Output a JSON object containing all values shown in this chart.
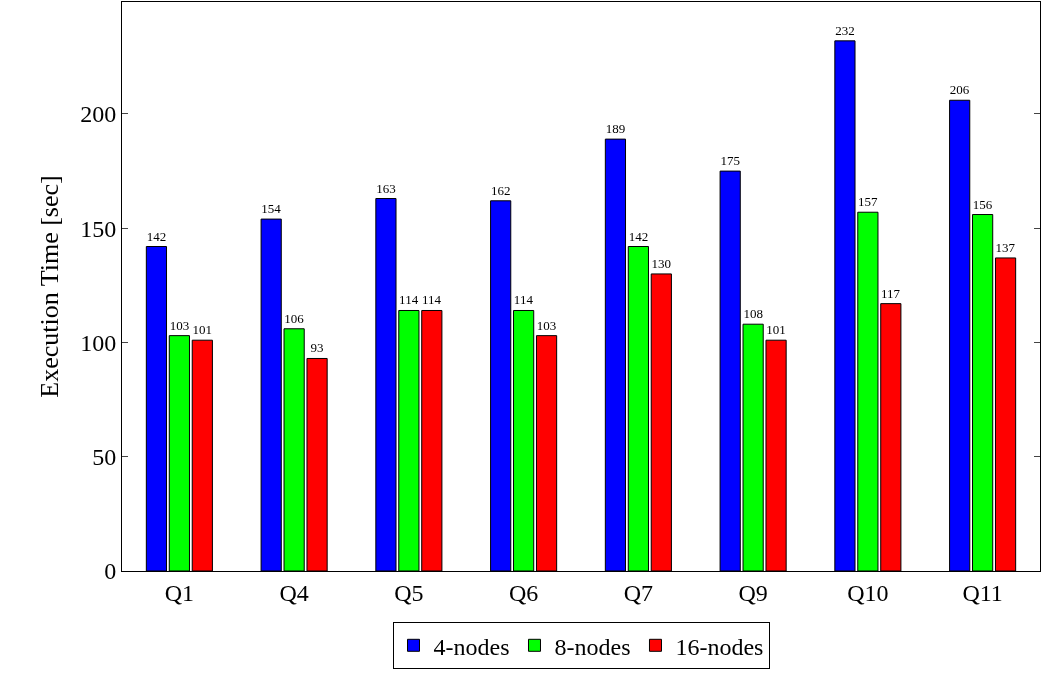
{
  "chart_data": {
    "type": "bar",
    "ylabel": "Execution Time [sec]",
    "categories": [
      "Q1",
      "Q4",
      "Q5",
      "Q6",
      "Q7",
      "Q9",
      "Q10",
      "Q11"
    ],
    "series": [
      {
        "name": "4-nodes",
        "color": "#0000ff",
        "values": [
          142,
          154,
          163,
          162,
          189,
          175,
          232,
          206
        ]
      },
      {
        "name": "8-nodes",
        "color": "#00ff00",
        "values": [
          103,
          106,
          114,
          114,
          142,
          108,
          157,
          156
        ]
      },
      {
        "name": "16-nodes",
        "color": "#ff0000",
        "values": [
          101,
          93,
          114,
          103,
          130,
          101,
          117,
          137
        ]
      }
    ],
    "ylim": [
      0,
      249
    ],
    "yticks": [
      0,
      50,
      100,
      150,
      200
    ],
    "grid": false,
    "legend": "bottom",
    "data_labels": true
  }
}
